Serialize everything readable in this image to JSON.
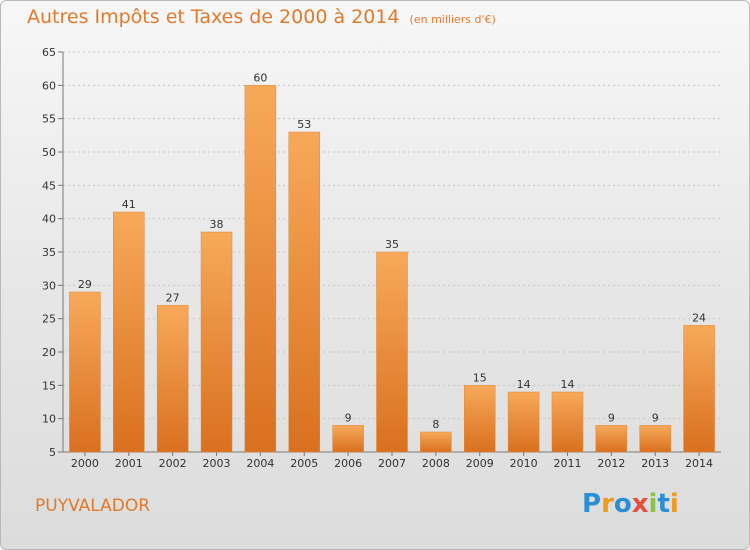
{
  "title": "Autres Impôts et Taxes de 2000 à 2014",
  "subtitle": "(en milliers d'€)",
  "town": "PUYVALADOR",
  "logo_text": "Proxiti",
  "colors": {
    "bar_light": "#f7a95a",
    "bar_dark": "#d9701f",
    "title": "#e07a2c"
  },
  "chart_data": {
    "type": "bar",
    "categories": [
      "2000",
      "2001",
      "2002",
      "2003",
      "2004",
      "2005",
      "2006",
      "2007",
      "2008",
      "2009",
      "2010",
      "2011",
      "2012",
      "2013",
      "2014"
    ],
    "values": [
      29,
      41,
      27,
      38,
      60,
      53,
      9,
      35,
      8,
      15,
      14,
      14,
      9,
      9,
      24
    ],
    "title": "Autres Impôts et Taxes de 2000 à 2014",
    "xlabel": "",
    "ylabel": "",
    "ylim": [
      5,
      65
    ],
    "yticks": [
      5,
      10,
      15,
      20,
      25,
      30,
      35,
      40,
      45,
      50,
      55,
      60,
      65
    ],
    "grid": true,
    "data_labels": true
  }
}
